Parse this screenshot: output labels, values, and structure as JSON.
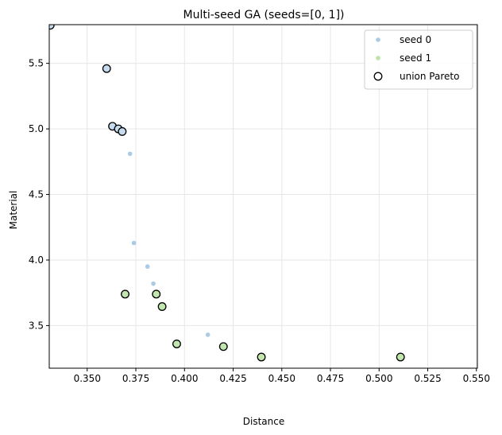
{
  "chart_data": {
    "type": "scatter",
    "title": "Multi-seed GA (seeds=[0, 1])",
    "xlabel": "Distance",
    "ylabel": "Material",
    "xlim": [
      0.3305,
      0.5505
    ],
    "ylim": [
      3.175,
      5.795
    ],
    "xticks": [
      0.35,
      0.375,
      0.4,
      0.425,
      0.45,
      0.475,
      0.5,
      0.525,
      0.55
    ],
    "xtick_labels": [
      "0.350",
      "0.375",
      "0.400",
      "0.425",
      "0.450",
      "0.475",
      "0.500",
      "0.525",
      "0.550"
    ],
    "yticks": [
      3.5,
      4.0,
      4.5,
      5.0,
      5.5
    ],
    "ytick_labels": [
      "3.5",
      "4.0",
      "4.5",
      "5.0",
      "5.5"
    ],
    "grid": true,
    "legend_position": "top-right",
    "series": [
      {
        "name": "seed 0",
        "kind": "small-point",
        "color": "#8fb9dc",
        "points": [
          [
            0.331,
            5.79
          ],
          [
            0.36,
            5.46
          ],
          [
            0.363,
            5.02
          ],
          [
            0.366,
            5.0
          ],
          [
            0.368,
            4.98
          ],
          [
            0.372,
            4.81
          ],
          [
            0.374,
            4.13
          ],
          [
            0.381,
            3.95
          ],
          [
            0.384,
            3.82
          ],
          [
            0.412,
            3.43
          ]
        ]
      },
      {
        "name": "seed 1",
        "kind": "small-point",
        "color": "#a8d88a",
        "points": [
          [
            0.3695,
            3.74
          ],
          [
            0.3855,
            3.74
          ],
          [
            0.3885,
            3.645
          ],
          [
            0.396,
            3.36
          ],
          [
            0.42,
            3.34
          ],
          [
            0.4395,
            3.26
          ],
          [
            0.511,
            3.26
          ]
        ]
      },
      {
        "name": "union Pareto",
        "kind": "pareto-marker",
        "points": [
          {
            "x": 0.331,
            "y": 5.79,
            "seed": 0
          },
          {
            "x": 0.36,
            "y": 5.46,
            "seed": 0
          },
          {
            "x": 0.363,
            "y": 5.02,
            "seed": 0
          },
          {
            "x": 0.366,
            "y": 5.0,
            "seed": 0
          },
          {
            "x": 0.368,
            "y": 4.98,
            "seed": 0
          },
          {
            "x": 0.3695,
            "y": 3.74,
            "seed": 1
          },
          {
            "x": 0.3855,
            "y": 3.74,
            "seed": 1
          },
          {
            "x": 0.3885,
            "y": 3.645,
            "seed": 1
          },
          {
            "x": 0.396,
            "y": 3.36,
            "seed": 1
          },
          {
            "x": 0.42,
            "y": 3.34,
            "seed": 1
          },
          {
            "x": 0.4395,
            "y": 3.26,
            "seed": 1
          },
          {
            "x": 0.511,
            "y": 3.26,
            "seed": 1
          }
        ]
      }
    ],
    "colors": {
      "seed0_marker_fill": "#c6dcee",
      "seed1_marker_fill": "#c2e6ae",
      "pareto_edge": "#000000",
      "grid": "#e6e6e6"
    },
    "legend": [
      {
        "label": "seed 0",
        "marker": "seed0"
      },
      {
        "label": "seed 1",
        "marker": "seed1"
      },
      {
        "label": "union Pareto",
        "marker": "pareto"
      }
    ]
  }
}
